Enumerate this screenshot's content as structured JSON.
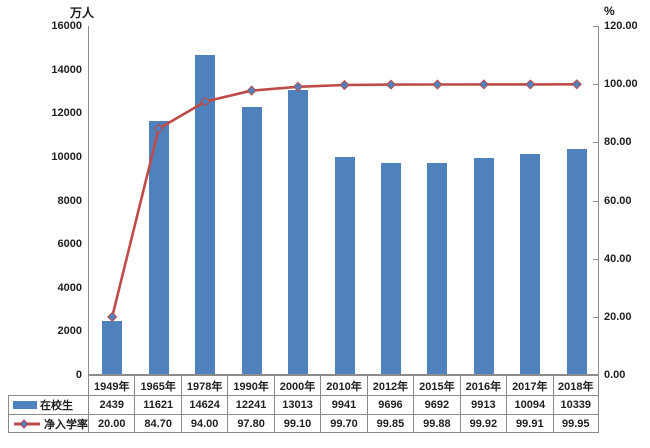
{
  "chart_data": {
    "type": "combo-bar-line",
    "categories": [
      "1949年",
      "1965年",
      "1978年",
      "1990年",
      "2000年",
      "2010年",
      "2012年",
      "2015年",
      "2016年",
      "2017年",
      "2018年"
    ],
    "series": [
      {
        "name": "在校生",
        "type": "bar",
        "axis": "left",
        "color": "#4F81BD",
        "values": [
          2439,
          11621,
          14624,
          12241,
          13013,
          9941,
          9696,
          9692,
          9913,
          10094,
          10339
        ]
      },
      {
        "name": "净入学率",
        "type": "line",
        "axis": "right",
        "color": "#BE4B48",
        "marker": "diamond",
        "marker_fill": "#4F81BD",
        "marker_border": "#BE4B48",
        "values": [
          20.0,
          84.7,
          94.0,
          97.8,
          99.1,
          99.7,
          99.85,
          99.88,
          99.92,
          99.91,
          99.95
        ]
      }
    ],
    "left_axis": {
      "title": "万人",
      "min": 0,
      "max": 16000,
      "step": 2000,
      "tick_labels": [
        "0",
        "2000",
        "4000",
        "6000",
        "8000",
        "10000",
        "12000",
        "14000",
        "16000"
      ]
    },
    "right_axis": {
      "title": "%",
      "min": 0,
      "max": 120,
      "step": 20,
      "tick_labels": [
        "0.00",
        "20.00",
        "40.00",
        "60.00",
        "80.00",
        "100.00",
        "120.00"
      ]
    },
    "grid": false,
    "legend_position": "data-table-left",
    "axis_color": "#8e8e8e",
    "text_color": "#1f1f1f",
    "data_table": {
      "rows": [
        {
          "label": "在校生",
          "display_values": [
            "2439",
            "11621",
            "14624",
            "12241",
            "13013",
            "9941",
            "9696",
            "9692",
            "9913",
            "10094",
            "10339"
          ]
        },
        {
          "label": "净入学率",
          "display_values": [
            "20.00",
            "84.70",
            "94.00",
            "97.80",
            "99.10",
            "99.70",
            "99.85",
            "99.88",
            "99.92",
            "99.91",
            "99.95"
          ]
        }
      ]
    }
  }
}
